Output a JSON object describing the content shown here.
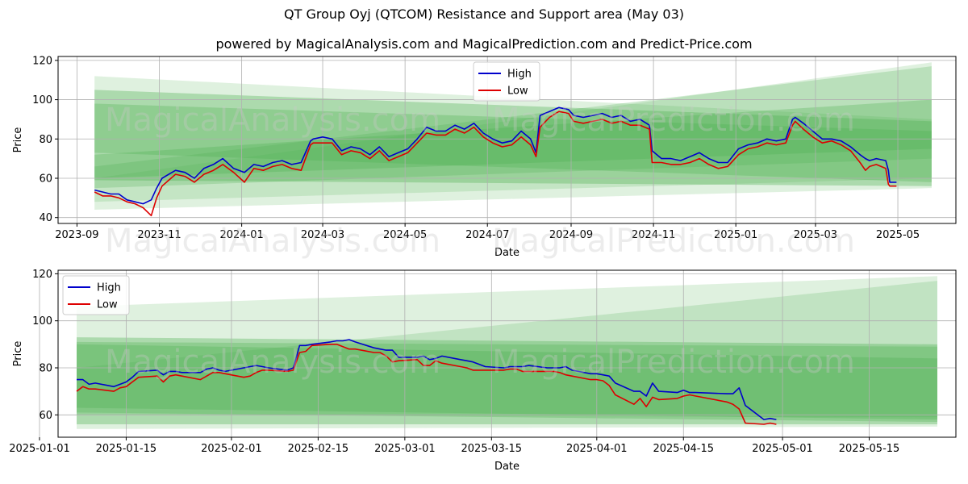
{
  "title": "QT Group Oyj (QTCOM) Resistance and Support area (May 03)",
  "subtitle": "powered by MagicalAnalysis.com and MagicalPrediction.com and Predict-Price.com",
  "watermarks": [
    "MagicalAnalysis.com",
    "MagicalPrediction.com"
  ],
  "colors": {
    "high": "#0000cc",
    "low": "#dd0000",
    "band": "#4caf50",
    "grid": "#b0b0b0"
  },
  "chart_data": [
    {
      "type": "line",
      "xlabel": "Date",
      "ylabel": "Price",
      "xlim": [
        "2023-08-18",
        "2025-06-13"
      ],
      "ylim": [
        37,
        122
      ],
      "xticks": [
        "2023-09",
        "2023-11",
        "2024-01",
        "2024-03",
        "2024-05",
        "2024-07",
        "2024-09",
        "2024-11",
        "2025-01",
        "2025-03",
        "2025-05"
      ],
      "yticks": [
        40,
        60,
        80,
        100,
        120
      ],
      "grid": true,
      "legend": {
        "placement": "upper center",
        "entries": [
          "High",
          "Low"
        ]
      },
      "bands": [
        {
          "x": [
            "2023-09-14",
            "2025-05-26"
          ],
          "upper": [
            112,
            90
          ],
          "lower": [
            44,
            55
          ],
          "opacity": 0.18
        },
        {
          "x": [
            "2023-09-14",
            "2025-05-26"
          ],
          "upper": [
            105,
            89
          ],
          "lower": [
            59,
            56
          ],
          "opacity": 0.35
        },
        {
          "x": [
            "2023-09-14",
            "2025-05-26"
          ],
          "upper": [
            98,
            84
          ],
          "lower": [
            73,
            58
          ],
          "opacity": 0.3
        },
        {
          "x": [
            "2023-09-14",
            "2025-05-26"
          ],
          "upper": [
            60,
            119
          ],
          "lower": [
            48,
            60
          ],
          "opacity": 0.18
        },
        {
          "x": [
            "2023-09-14",
            "2025-05-26"
          ],
          "upper": [
            66,
            117
          ],
          "lower": [
            55,
            70
          ],
          "opacity": 0.25
        },
        {
          "x": [
            "2023-09-14",
            "2025-05-26"
          ],
          "upper": [
            72,
            100
          ],
          "lower": [
            60,
            75
          ],
          "opacity": 0.3
        }
      ],
      "series": [
        {
          "name": "High",
          "x": [
            "2023-09-14",
            "2023-09-20",
            "2023-09-26",
            "2023-10-02",
            "2023-10-08",
            "2023-10-14",
            "2023-10-20",
            "2023-10-26",
            "2023-10-30",
            "2023-11-03",
            "2023-11-08",
            "2023-11-13",
            "2023-11-20",
            "2023-11-27",
            "2023-12-04",
            "2023-12-11",
            "2023-12-18",
            "2023-12-26",
            "2024-01-03",
            "2024-01-10",
            "2024-01-17",
            "2024-01-24",
            "2024-01-31",
            "2024-02-07",
            "2024-02-14",
            "2024-02-21",
            "2024-02-23",
            "2024-03-01",
            "2024-03-08",
            "2024-03-15",
            "2024-03-22",
            "2024-03-29",
            "2024-04-05",
            "2024-04-12",
            "2024-04-19",
            "2024-04-26",
            "2024-05-03",
            "2024-05-10",
            "2024-05-17",
            "2024-05-24",
            "2024-05-31",
            "2024-06-07",
            "2024-06-14",
            "2024-06-21",
            "2024-06-28",
            "2024-07-05",
            "2024-07-12",
            "2024-07-19",
            "2024-07-26",
            "2024-08-02",
            "2024-08-06",
            "2024-08-09",
            "2024-08-16",
            "2024-08-23",
            "2024-08-30",
            "2024-09-03",
            "2024-09-10",
            "2024-09-17",
            "2024-09-24",
            "2024-10-01",
            "2024-10-08",
            "2024-10-15",
            "2024-10-22",
            "2024-10-29",
            "2024-10-31",
            "2024-11-07",
            "2024-11-14",
            "2024-11-21",
            "2024-11-28",
            "2024-12-05",
            "2024-12-12",
            "2024-12-19",
            "2024-12-26",
            "2025-01-03",
            "2025-01-10",
            "2025-01-17",
            "2025-01-24",
            "2025-01-31",
            "2025-02-07",
            "2025-02-12",
            "2025-02-14",
            "2025-02-20",
            "2025-02-27",
            "2025-03-06",
            "2025-03-13",
            "2025-03-20",
            "2025-03-27",
            "2025-04-03",
            "2025-04-07",
            "2025-04-10",
            "2025-04-15",
            "2025-04-22",
            "2025-04-24",
            "2025-04-25",
            "2025-04-30"
          ],
          "values": [
            54,
            53,
            52,
            52,
            49,
            48,
            47,
            49,
            55,
            60,
            62,
            64,
            63,
            60,
            65,
            67,
            70,
            65,
            63,
            67,
            66,
            68,
            69,
            67,
            68,
            79,
            80,
            81,
            80,
            74,
            76,
            75,
            72,
            76,
            71,
            73,
            75,
            80,
            86,
            84,
            84,
            87,
            85,
            88,
            83,
            80,
            78,
            79,
            84,
            80,
            73,
            92,
            94,
            96,
            95,
            92,
            91,
            92,
            93,
            91,
            92,
            89,
            90,
            87,
            74,
            70,
            70,
            69,
            71,
            73,
            70,
            68,
            68,
            75,
            77,
            78,
            80,
            79,
            80,
            90,
            91,
            88,
            84,
            80,
            80,
            79,
            76,
            72,
            70,
            69,
            70,
            69,
            64,
            58,
            58
          ]
        },
        {
          "name": "Low",
          "x": [
            "2023-09-14",
            "2023-09-20",
            "2023-09-26",
            "2023-10-02",
            "2023-10-08",
            "2023-10-14",
            "2023-10-20",
            "2023-10-26",
            "2023-10-30",
            "2023-11-03",
            "2023-11-08",
            "2023-11-13",
            "2023-11-20",
            "2023-11-27",
            "2023-12-04",
            "2023-12-11",
            "2023-12-18",
            "2023-12-26",
            "2024-01-03",
            "2024-01-10",
            "2024-01-17",
            "2024-01-24",
            "2024-01-31",
            "2024-02-07",
            "2024-02-14",
            "2024-02-21",
            "2024-02-23",
            "2024-03-01",
            "2024-03-08",
            "2024-03-15",
            "2024-03-22",
            "2024-03-29",
            "2024-04-05",
            "2024-04-12",
            "2024-04-19",
            "2024-04-26",
            "2024-05-03",
            "2024-05-10",
            "2024-05-17",
            "2024-05-24",
            "2024-05-31",
            "2024-06-07",
            "2024-06-14",
            "2024-06-21",
            "2024-06-28",
            "2024-07-05",
            "2024-07-12",
            "2024-07-19",
            "2024-07-26",
            "2024-08-02",
            "2024-08-06",
            "2024-08-09",
            "2024-08-16",
            "2024-08-23",
            "2024-08-30",
            "2024-09-03",
            "2024-09-10",
            "2024-09-17",
            "2024-09-24",
            "2024-10-01",
            "2024-10-08",
            "2024-10-15",
            "2024-10-22",
            "2024-10-29",
            "2024-10-31",
            "2024-11-07",
            "2024-11-14",
            "2024-11-21",
            "2024-11-28",
            "2024-12-05",
            "2024-12-12",
            "2024-12-19",
            "2024-12-26",
            "2025-01-03",
            "2025-01-10",
            "2025-01-17",
            "2025-01-24",
            "2025-01-31",
            "2025-02-07",
            "2025-02-12",
            "2025-02-14",
            "2025-02-20",
            "2025-02-27",
            "2025-03-06",
            "2025-03-13",
            "2025-03-20",
            "2025-03-27",
            "2025-04-03",
            "2025-04-07",
            "2025-04-10",
            "2025-04-15",
            "2025-04-22",
            "2025-04-24",
            "2025-04-25",
            "2025-04-30"
          ],
          "values": [
            53,
            51,
            51,
            50,
            48,
            47,
            45,
            41,
            50,
            56,
            59,
            62,
            61,
            58,
            62,
            64,
            67,
            63,
            58,
            65,
            64,
            66,
            67,
            65,
            64,
            77,
            78,
            78,
            78,
            72,
            74,
            73,
            70,
            74,
            69,
            71,
            73,
            78,
            83,
            82,
            82,
            85,
            83,
            86,
            81,
            78,
            76,
            77,
            81,
            77,
            71,
            86,
            91,
            94,
            93,
            89,
            88,
            89,
            90,
            88,
            89,
            87,
            87,
            85,
            68,
            68,
            67,
            67,
            68,
            70,
            67,
            65,
            66,
            72,
            75,
            76,
            78,
            77,
            78,
            87,
            89,
            85,
            81,
            78,
            79,
            77,
            74,
            68,
            64,
            66,
            67,
            65,
            57,
            56,
            56
          ]
        }
      ]
    },
    {
      "type": "line",
      "xlabel": "Date",
      "ylabel": "Price",
      "xlim": [
        "2025-01-04",
        "2025-05-29"
      ],
      "ylim": [
        50.5,
        121.5
      ],
      "xticks": [
        "2025-01-01",
        "2025-01-15",
        "2025-02-01",
        "2025-02-15",
        "2025-03-01",
        "2025-03-15",
        "2025-04-01",
        "2025-04-15",
        "2025-05-01",
        "2025-05-15"
      ],
      "yticks": [
        60,
        80,
        100,
        120
      ],
      "grid": true,
      "legend": {
        "placement": "upper left",
        "entries": [
          "High",
          "Low"
        ]
      },
      "bands": [
        {
          "x": [
            "2025-01-07",
            "2025-05-26"
          ],
          "upper": [
            106,
            119
          ],
          "lower": [
            54,
            55
          ],
          "opacity": 0.18
        },
        {
          "x": [
            "2025-01-07",
            "2025-05-26"
          ],
          "upper": [
            93,
            90
          ],
          "lower": [
            56,
            56
          ],
          "opacity": 0.35
        },
        {
          "x": [
            "2025-01-07",
            "2025-05-26"
          ],
          "upper": [
            91,
            89
          ],
          "lower": [
            61,
            57
          ],
          "opacity": 0.3
        },
        {
          "x": [
            "2025-01-07",
            "2025-05-26"
          ],
          "upper": [
            90,
            84
          ],
          "lower": [
            63,
            58
          ],
          "opacity": 0.3
        },
        {
          "x": [
            "2025-01-07",
            "2025-05-26"
          ],
          "upper": [
            80,
            117
          ],
          "lower": [
            60,
            59
          ],
          "opacity": 0.2
        }
      ],
      "series": [
        {
          "name": "High",
          "x": [
            "2025-01-07",
            "2025-01-08",
            "2025-01-09",
            "2025-01-10",
            "2025-01-13",
            "2025-01-14",
            "2025-01-15",
            "2025-01-16",
            "2025-01-17",
            "2025-01-20",
            "2025-01-21",
            "2025-01-22",
            "2025-01-23",
            "2025-01-24",
            "2025-01-27",
            "2025-01-28",
            "2025-01-29",
            "2025-01-30",
            "2025-01-31",
            "2025-02-03",
            "2025-02-04",
            "2025-02-05",
            "2025-02-06",
            "2025-02-07",
            "2025-02-10",
            "2025-02-11",
            "2025-02-12",
            "2025-02-13",
            "2025-02-14",
            "2025-02-17",
            "2025-02-18",
            "2025-02-19",
            "2025-02-20",
            "2025-02-21",
            "2025-02-24",
            "2025-02-25",
            "2025-02-26",
            "2025-02-27",
            "2025-02-28",
            "2025-03-03",
            "2025-03-04",
            "2025-03-05",
            "2025-03-06",
            "2025-03-07",
            "2025-03-10",
            "2025-03-11",
            "2025-03-12",
            "2025-03-13",
            "2025-03-14",
            "2025-03-17",
            "2025-03-18",
            "2025-03-19",
            "2025-03-20",
            "2025-03-21",
            "2025-03-24",
            "2025-03-25",
            "2025-03-26",
            "2025-03-27",
            "2025-03-28",
            "2025-03-31",
            "2025-04-01",
            "2025-04-02",
            "2025-04-03",
            "2025-04-04",
            "2025-04-07",
            "2025-04-08",
            "2025-04-09",
            "2025-04-10",
            "2025-04-11",
            "2025-04-14",
            "2025-04-15",
            "2025-04-16",
            "2025-04-17",
            "2025-04-22",
            "2025-04-23",
            "2025-04-24",
            "2025-04-25",
            "2025-04-28",
            "2025-04-29",
            "2025-04-30"
          ],
          "values": [
            75,
            75,
            73,
            73.5,
            72,
            73,
            74,
            76,
            78.5,
            79,
            77,
            78.5,
            78.5,
            78,
            78,
            79.5,
            80,
            79,
            78.5,
            80,
            80.5,
            81,
            80.5,
            80,
            79,
            80,
            89.5,
            89.5,
            90,
            91,
            91.5,
            91.5,
            92,
            91,
            88.5,
            88,
            87.5,
            87.5,
            84.5,
            84.5,
            85,
            83.5,
            84,
            85,
            83.5,
            83,
            82.5,
            81.5,
            80.5,
            80,
            80.5,
            80.5,
            80.5,
            81,
            80,
            80,
            80,
            80.5,
            79,
            77.5,
            77.5,
            77,
            76.5,
            73.5,
            70,
            70,
            68,
            73.5,
            70,
            69.5,
            70.5,
            69.5,
            69.5,
            69,
            69,
            71.5,
            64,
            58,
            58.5,
            58
          ]
        },
        {
          "name": "Low",
          "x": [
            "2025-01-07",
            "2025-01-08",
            "2025-01-09",
            "2025-01-10",
            "2025-01-13",
            "2025-01-14",
            "2025-01-15",
            "2025-01-16",
            "2025-01-17",
            "2025-01-20",
            "2025-01-21",
            "2025-01-22",
            "2025-01-23",
            "2025-01-24",
            "2025-01-27",
            "2025-01-28",
            "2025-01-29",
            "2025-01-30",
            "2025-01-31",
            "2025-02-03",
            "2025-02-04",
            "2025-02-05",
            "2025-02-06",
            "2025-02-07",
            "2025-02-10",
            "2025-02-11",
            "2025-02-12",
            "2025-02-13",
            "2025-02-14",
            "2025-02-17",
            "2025-02-18",
            "2025-02-19",
            "2025-02-20",
            "2025-02-21",
            "2025-02-24",
            "2025-02-25",
            "2025-02-26",
            "2025-02-27",
            "2025-02-28",
            "2025-03-03",
            "2025-03-04",
            "2025-03-05",
            "2025-03-06",
            "2025-03-07",
            "2025-03-10",
            "2025-03-11",
            "2025-03-12",
            "2025-03-13",
            "2025-03-14",
            "2025-03-17",
            "2025-03-18",
            "2025-03-19",
            "2025-03-20",
            "2025-03-21",
            "2025-03-24",
            "2025-03-25",
            "2025-03-26",
            "2025-03-27",
            "2025-03-28",
            "2025-03-31",
            "2025-04-01",
            "2025-04-02",
            "2025-04-03",
            "2025-04-04",
            "2025-04-07",
            "2025-04-08",
            "2025-04-09",
            "2025-04-10",
            "2025-04-11",
            "2025-04-14",
            "2025-04-15",
            "2025-04-16",
            "2025-04-17",
            "2025-04-22",
            "2025-04-23",
            "2025-04-24",
            "2025-04-25",
            "2025-04-28",
            "2025-04-29",
            "2025-04-30"
          ],
          "values": [
            70,
            72,
            71,
            71,
            70,
            71.5,
            72,
            74,
            76,
            76.5,
            74,
            76.5,
            77,
            76.5,
            75,
            76.5,
            78,
            78,
            77.5,
            76,
            76.5,
            78,
            79,
            79,
            78.5,
            79,
            86.5,
            87,
            89.5,
            90,
            90,
            89,
            88,
            88,
            86.5,
            86.5,
            85,
            82.5,
            83,
            83.5,
            81,
            81,
            83,
            82,
            80.5,
            80,
            79,
            79,
            79,
            79,
            79.5,
            79.5,
            78.5,
            78.5,
            78.5,
            78.5,
            78,
            77,
            76.5,
            75,
            75,
            74.5,
            72.5,
            68.5,
            64.5,
            67,
            63.5,
            67.5,
            66.5,
            67,
            68,
            68.5,
            68,
            65.5,
            64.5,
            62.5,
            56.5,
            56,
            56.5,
            56
          ]
        }
      ]
    }
  ]
}
